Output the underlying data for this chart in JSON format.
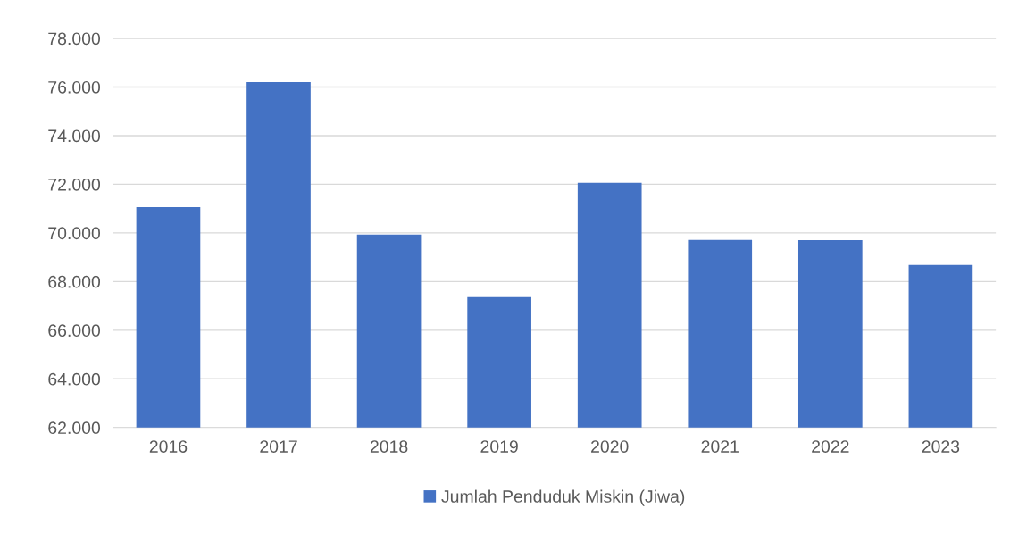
{
  "chart_data": {
    "type": "bar",
    "categories": [
      "2016",
      "2017",
      "2018",
      "2019",
      "2020",
      "2021",
      "2022",
      "2023"
    ],
    "series": [
      {
        "name": "Jumlah Penduduk Miskin (Jiwa)",
        "color": "#4472c4",
        "values": [
          71060,
          76200,
          69930,
          67360,
          72060,
          69710,
          69700,
          68680
        ]
      }
    ],
    "ylim": [
      62000,
      78000
    ],
    "yticks": [
      {
        "value": 62000,
        "label": "62.000"
      },
      {
        "value": 64000,
        "label": "64.000"
      },
      {
        "value": 66000,
        "label": "66.000"
      },
      {
        "value": 68000,
        "label": "68.000"
      },
      {
        "value": 70000,
        "label": "70.000"
      },
      {
        "value": 72000,
        "label": "72.000"
      },
      {
        "value": 74000,
        "label": "74.000"
      },
      {
        "value": 76000,
        "label": "76.000"
      },
      {
        "value": 78000,
        "label": "78.000"
      }
    ],
    "grid": "y",
    "legend": "bottom"
  }
}
